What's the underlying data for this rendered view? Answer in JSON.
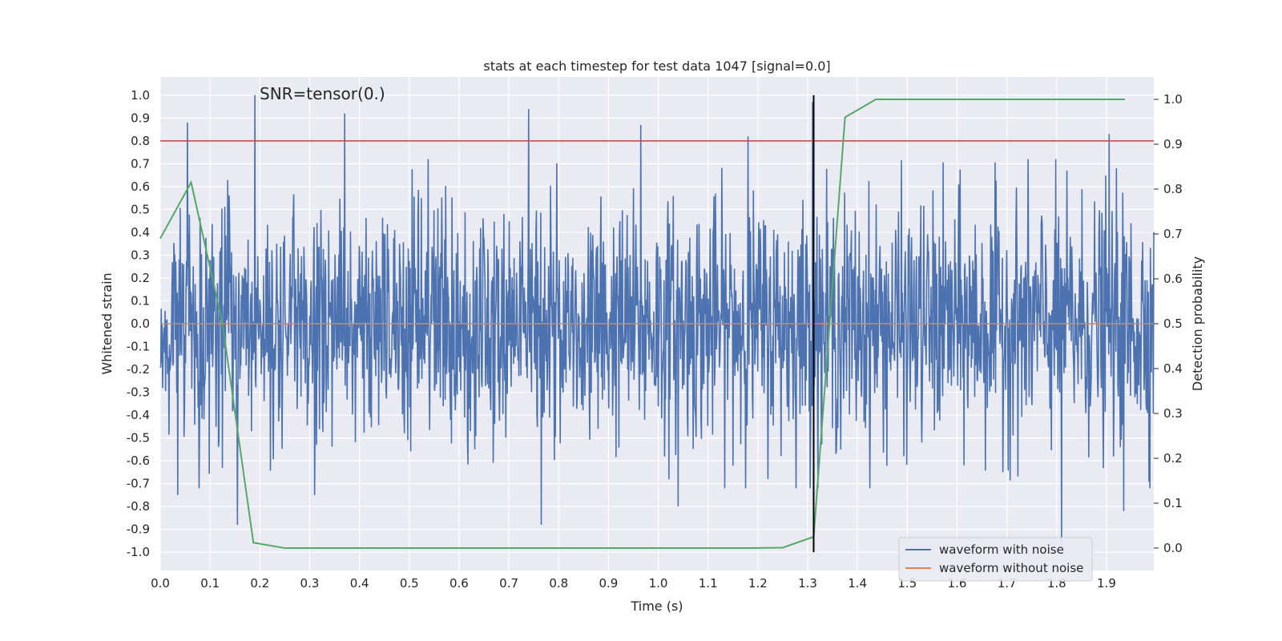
{
  "chart_data": {
    "type": "line",
    "title": "stats at each timestep for test data 1047 [signal=0.0]",
    "xlabel": "Time (s)",
    "ylabel": "Whitened strain",
    "y2label": "Detection probability",
    "annotation": "SNR=tensor(0.)",
    "xlim": [
      0.0,
      1.995
    ],
    "ylim": [
      -1.08,
      1.08
    ],
    "y2lim": [
      -0.05,
      1.05
    ],
    "x_ticks": [
      "0.0",
      "0.1",
      "0.2",
      "0.3",
      "0.4",
      "0.5",
      "0.6",
      "0.7",
      "0.8",
      "0.9",
      "1.0",
      "1.1",
      "1.2",
      "1.3",
      "1.4",
      "1.5",
      "1.6",
      "1.7",
      "1.8",
      "1.9"
    ],
    "y_ticks": [
      "1.0",
      "0.9",
      "0.8",
      "0.7",
      "0.6",
      "0.5",
      "0.4",
      "0.3",
      "0.2",
      "0.1",
      "0.0",
      "-0.1",
      "-0.2",
      "-0.3",
      "-0.4",
      "-0.5",
      "-0.6",
      "-0.7",
      "-0.8",
      "-0.9",
      "-1.0"
    ],
    "y2_ticks": [
      "0.0",
      "0.1",
      "0.2",
      "0.3",
      "0.4",
      "0.5",
      "0.6",
      "0.7",
      "0.8",
      "0.9",
      "1.0"
    ],
    "grid": true,
    "legend_position": "lower-right",
    "series": [
      {
        "name": "waveform with noise",
        "axis": "left",
        "color": "#4c72b0",
        "samples": 2048,
        "x_range": [
          0.0,
          1.995
        ],
        "peaks": [
          {
            "x": 0.055,
            "y": 0.88
          },
          {
            "x": 0.19,
            "y": 1.0
          },
          {
            "x": 0.37,
            "y": 0.92
          },
          {
            "x": 0.74,
            "y": 0.94
          },
          {
            "x": 0.965,
            "y": 0.87
          },
          {
            "x": 1.18,
            "y": 0.82
          },
          {
            "x": 1.31,
            "y": 0.97
          },
          {
            "x": 1.905,
            "y": 0.83
          },
          {
            "x": 0.035,
            "y": -0.75
          },
          {
            "x": 0.155,
            "y": -0.88
          },
          {
            "x": 0.31,
            "y": -0.75
          },
          {
            "x": 0.765,
            "y": -0.88
          },
          {
            "x": 1.04,
            "y": -0.8
          },
          {
            "x": 1.81,
            "y": -0.97
          },
          {
            "x": 1.935,
            "y": -0.82
          }
        ]
      },
      {
        "name": "waveform without noise",
        "axis": "left",
        "color": "#dd8452",
        "x": [
          0.0,
          1.995
        ],
        "y": [
          0.0,
          0.0
        ]
      },
      {
        "name": "",
        "axis": "right",
        "color": "#55a868",
        "x": [
          0.0,
          0.062,
          0.125,
          0.187,
          0.25,
          0.312,
          0.375,
          0.437,
          0.5,
          0.562,
          0.625,
          0.687,
          0.75,
          0.812,
          0.875,
          0.937,
          1.0,
          1.062,
          1.125,
          1.187,
          1.25,
          1.312,
          1.375,
          1.437,
          1.5,
          1.562,
          1.625,
          1.687,
          1.75,
          1.812,
          1.875,
          1.937
        ],
        "y": [
          0.69,
          0.815,
          0.5,
          0.012,
          0.0,
          0.0,
          0.0,
          0.0,
          0.0,
          0.0,
          0.0,
          0.0,
          0.0,
          0.0,
          0.0,
          0.0,
          0.0,
          0.0,
          0.0,
          0.0,
          0.001,
          0.025,
          0.96,
          1.0,
          1.0,
          1.0,
          1.0,
          1.0,
          1.0,
          1.0,
          1.0,
          1.0
        ]
      }
    ],
    "hlines": [
      {
        "y": 0.8,
        "axis": "left",
        "color": "#c44e52"
      }
    ],
    "vlines": [
      {
        "x": 1.312,
        "ymin": -1.0,
        "ymax": 1.0,
        "color": "#000000"
      }
    ]
  }
}
